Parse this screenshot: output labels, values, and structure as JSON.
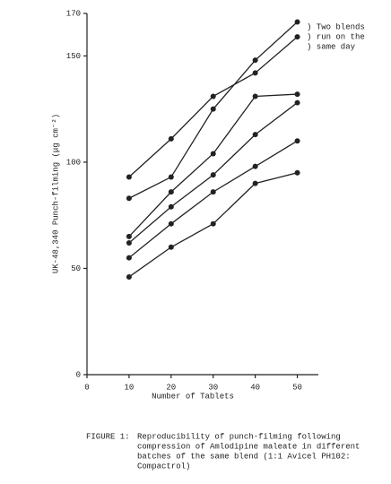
{
  "chart_data": {
    "type": "line",
    "x_label": "Number of Tablets",
    "y_label": "UK-48,340 Punch-filming (μg cm⁻²)",
    "annotation": [
      ") Two blends",
      ") run on the",
      ") same day"
    ],
    "caption": [
      "FIGURE 1:",
      "Reproducibility of punch-filming following",
      "compression of Amlodipine maleate in different",
      "batches of the same blend (1:1 Avicel PH102:",
      "Compactrol)"
    ],
    "x": [
      10,
      20,
      30,
      40,
      50
    ],
    "series": [
      {
        "color": "#222222",
        "values": [
          93,
          111,
          131,
          142,
          159
        ]
      },
      {
        "color": "#222222",
        "values": [
          83,
          93,
          125,
          148,
          166
        ]
      },
      {
        "color": "#222222",
        "values": [
          65,
          86,
          104,
          131,
          132
        ]
      },
      {
        "color": "#222222",
        "values": [
          62,
          79,
          94,
          113,
          128
        ]
      },
      {
        "color": "#222222",
        "values": [
          55,
          71,
          86,
          98,
          110
        ]
      },
      {
        "color": "#222222",
        "values": [
          46,
          60,
          71,
          90,
          95
        ]
      }
    ],
    "xlim": [
      0,
      55
    ],
    "xticks": [
      0,
      10,
      20,
      30,
      40,
      50
    ],
    "ylim": [
      0,
      170
    ],
    "yticks": [
      0,
      50,
      100,
      150,
      170
    ],
    "grid": false
  }
}
